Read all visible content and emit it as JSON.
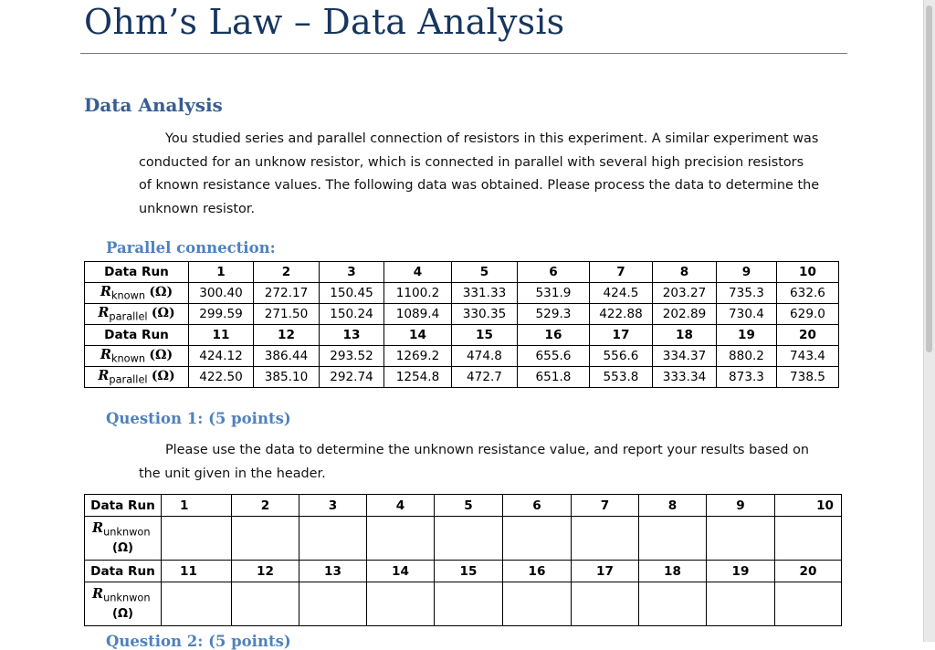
{
  "title": "Ohm’s Law – Data Analysis",
  "section_heading": "Data Analysis",
  "intro_lines": [
    "You studied series and parallel connection of resistors in this experiment. A similar experiment was",
    "conducted for an unknow resistor, which is connected in parallel with several high precision resistors",
    "of known resistance values. The following data was obtained. Please process the data to determine the",
    "unknown resistor."
  ],
  "parallel_heading": "Parallel connection:",
  "table1": {
    "run_label": "Data Run",
    "known_label": {
      "var": "R",
      "sub": "known",
      "unit": "(Ω)"
    },
    "parallel_label": {
      "var": "R",
      "sub": "parallel",
      "unit": "(Ω)"
    },
    "runs_a": [
      "1",
      "2",
      "3",
      "4",
      "5",
      "6",
      "7",
      "8",
      "9",
      "10"
    ],
    "known_a": [
      "300.40",
      "272.17",
      "150.45",
      "1100.2",
      "331.33",
      "531.9",
      "424.5",
      "203.27",
      "735.3",
      "632.6"
    ],
    "parallel_a": [
      "299.59",
      "271.50",
      "150.24",
      "1089.4",
      "330.35",
      "529.3",
      "422.88",
      "202.89",
      "730.4",
      "629.0"
    ],
    "runs_b": [
      "11",
      "12",
      "13",
      "14",
      "15",
      "16",
      "17",
      "18",
      "19",
      "20"
    ],
    "known_b": [
      "424.12",
      "386.44",
      "293.52",
      "1269.2",
      "474.8",
      "655.6",
      "556.6",
      "334.37",
      "880.2",
      "743.4"
    ],
    "parallel_b": [
      "422.50",
      "385.10",
      "292.74",
      "1254.8",
      "472.7",
      "651.8",
      "553.8",
      "333.34",
      "873.3",
      "738.5"
    ]
  },
  "question1_heading": "Question 1: (5 points)",
  "question1_lines": [
    "Please use the data to determine the unknown resistance value, and report your results based on",
    "the unit given in the header."
  ],
  "table2": {
    "run_label": "Data Run",
    "unknown_label": {
      "var": "R",
      "sub": "unknwon",
      "unit": "(Ω)"
    },
    "runs_a": [
      "1",
      "2",
      "3",
      "4",
      "5",
      "6",
      "7",
      "8",
      "9",
      "10"
    ],
    "runs_b": [
      "11",
      "12",
      "13",
      "14",
      "15",
      "16",
      "17",
      "18",
      "19",
      "20"
    ]
  },
  "next_heading_partial": "Question 2: (5 points)"
}
